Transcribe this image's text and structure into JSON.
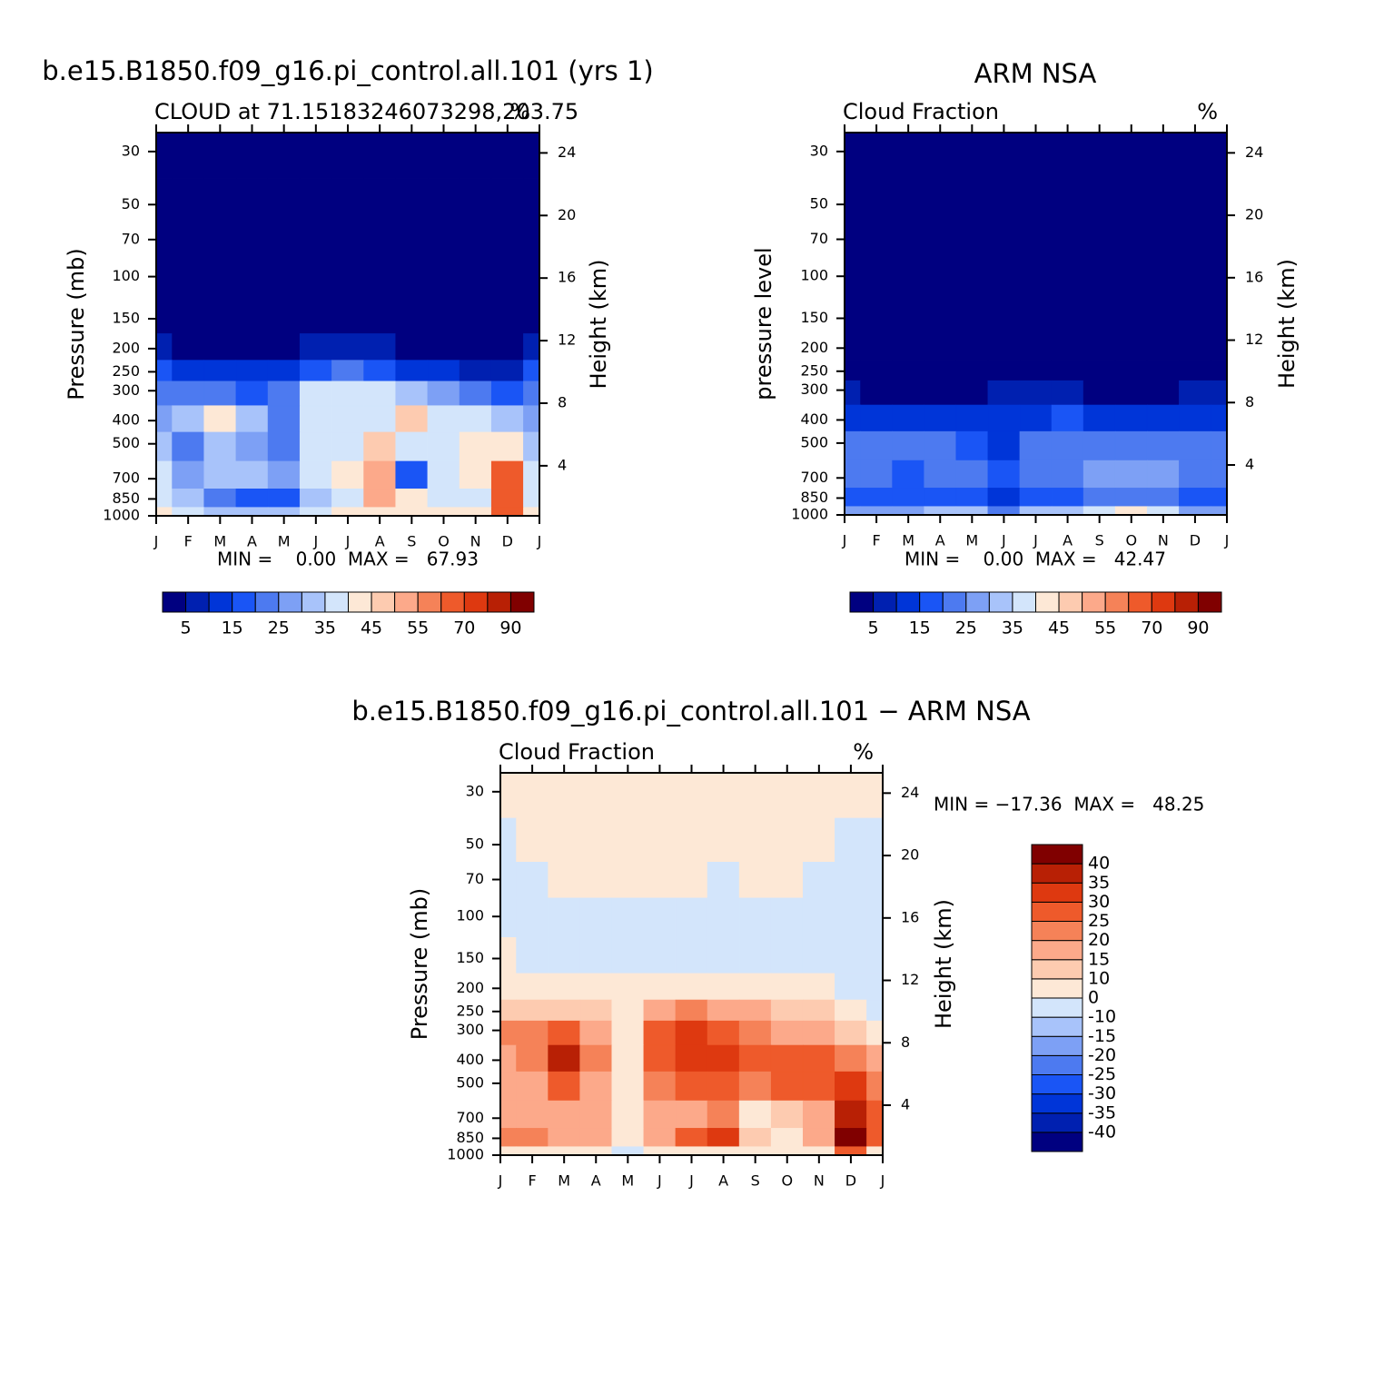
{
  "chart_data": [
    {
      "type": "contour",
      "title": "b.e15.B1850.f09_g16.pi_control.all.101  (yrs 1)",
      "subtitle_left": "CLOUD at 71.15183246073298,203.75",
      "subtitle_right": "%",
      "y_label": "Pressure (mb)",
      "y2_label": "Height (km)",
      "categories": [
        "J",
        "F",
        "M",
        "A",
        "M",
        "J",
        "J",
        "A",
        "S",
        "O",
        "N",
        "D",
        "J"
      ],
      "yticks": [
        30,
        50,
        70,
        100,
        150,
        200,
        250,
        300,
        400,
        500,
        700,
        850,
        1000
      ],
      "ylim": [
        1000,
        25
      ],
      "log_y": true,
      "y2ticks": [
        4,
        8,
        12,
        16,
        20,
        24
      ],
      "y2lim": [
        0.8,
        25.3
      ],
      "stats": "MIN =    0.00  MAX =   67.93",
      "levels": [
        5,
        10,
        15,
        20,
        25,
        30,
        35,
        40,
        45,
        50,
        55,
        60,
        70,
        80,
        90
      ],
      "colors": [
        "#000080",
        "#0020b0",
        "#0035d8",
        "#1a55f5",
        "#4d7af0",
        "#7da0f5",
        "#a8c3fa",
        "#d3e5fb",
        "#fde8d6",
        "#fdcbb0",
        "#fca98a",
        "#f58258",
        "#ee5a2b",
        "#de3910",
        "#b82005",
        "#800000"
      ],
      "z": [
        [
          0,
          0,
          0,
          0,
          0,
          0,
          0,
          0,
          0,
          0,
          0,
          0,
          0
        ],
        [
          0,
          0,
          0,
          0,
          0,
          0,
          0,
          0,
          0,
          0,
          0,
          0,
          0
        ],
        [
          0,
          0,
          0,
          0,
          0,
          0,
          0,
          0,
          0,
          0,
          0,
          0,
          0
        ],
        [
          0.5,
          0.5,
          0.5,
          0.5,
          0.5,
          0.5,
          0.5,
          0.5,
          0.5,
          0.5,
          0.5,
          0.5,
          0.5
        ],
        [
          1,
          1,
          1,
          1,
          1,
          1,
          1,
          1,
          1,
          1,
          1,
          1,
          1
        ],
        [
          8,
          4,
          3,
          2,
          3,
          5,
          8,
          6,
          4,
          4,
          3,
          2,
          8
        ],
        [
          15,
          12,
          12,
          10,
          12,
          18,
          22,
          18,
          14,
          12,
          8,
          6,
          15
        ],
        [
          22,
          20,
          22,
          18,
          22,
          35,
          38,
          36,
          30,
          28,
          22,
          18,
          22
        ],
        [
          28,
          30,
          40,
          30,
          20,
          35,
          38,
          36,
          45,
          38,
          35,
          30,
          28
        ],
        [
          30,
          22,
          30,
          28,
          20,
          38,
          38,
          45,
          38,
          36,
          40,
          42,
          30
        ],
        [
          35,
          28,
          30,
          30,
          25,
          38,
          40,
          50,
          15,
          35,
          40,
          62,
          35
        ],
        [
          38,
          30,
          20,
          15,
          18,
          30,
          38,
          52,
          40,
          38,
          38,
          62,
          38
        ],
        [
          40,
          38,
          30,
          30,
          30,
          35,
          40,
          40,
          40,
          40,
          40,
          67.93,
          40
        ]
      ]
    },
    {
      "type": "contour",
      "title": "ARM NSA",
      "subtitle_left": "Cloud Fraction",
      "subtitle_right": "%",
      "y_label": "pressure level",
      "y2_label": "Height (km)",
      "categories": [
        "J",
        "F",
        "M",
        "A",
        "M",
        "J",
        "J",
        "A",
        "S",
        "O",
        "N",
        "D",
        "J"
      ],
      "yticks": [
        30,
        50,
        70,
        100,
        150,
        200,
        250,
        300,
        400,
        500,
        700,
        850,
        1000
      ],
      "ylim": [
        1000,
        25
      ],
      "log_y": true,
      "y2ticks": [
        4,
        8,
        12,
        16,
        20,
        24
      ],
      "y2lim": [
        0.8,
        25.3
      ],
      "stats": "MIN =    0.00  MAX =   42.47",
      "levels": [
        5,
        10,
        15,
        20,
        25,
        30,
        35,
        40,
        45,
        50,
        55,
        60,
        70,
        80,
        90
      ],
      "colors": [
        "#000080",
        "#0020b0",
        "#0035d8",
        "#1a55f5",
        "#4d7af0",
        "#7da0f5",
        "#a8c3fa",
        "#d3e5fb",
        "#fde8d6",
        "#fdcbb0",
        "#fca98a",
        "#f58258",
        "#ee5a2b",
        "#de3910",
        "#b82005",
        "#800000"
      ],
      "z": [
        [
          0,
          0,
          0,
          0,
          0,
          0,
          0,
          0,
          0,
          0,
          0,
          0,
          0
        ],
        [
          0,
          0,
          0,
          0,
          0,
          0,
          0,
          0,
          0,
          0,
          0,
          0,
          0
        ],
        [
          0,
          0,
          0,
          0,
          0,
          0,
          0,
          0,
          0,
          0,
          0,
          0,
          0
        ],
        [
          0,
          0,
          0,
          0,
          0,
          0,
          0,
          0,
          0,
          0,
          0,
          0,
          0
        ],
        [
          0,
          0,
          0,
          0,
          0,
          0,
          0,
          0,
          0,
          0,
          0,
          0,
          0
        ],
        [
          0,
          0,
          0,
          0,
          0,
          0,
          0,
          0,
          0,
          0,
          0,
          0,
          0
        ],
        [
          0,
          0,
          0,
          0,
          0,
          0,
          0,
          0,
          0,
          0,
          0,
          0,
          0
        ],
        [
          6,
          4,
          2,
          3,
          4,
          5,
          5,
          6,
          4,
          4,
          4,
          6,
          6
        ],
        [
          12,
          10,
          10,
          10,
          10,
          12,
          14,
          16,
          12,
          12,
          12,
          14,
          12
        ],
        [
          20,
          20,
          22,
          20,
          18,
          14,
          20,
          22,
          20,
          20,
          22,
          22,
          20
        ],
        [
          22,
          20,
          16,
          20,
          22,
          16,
          20,
          24,
          26,
          26,
          25,
          22,
          22
        ],
        [
          18,
          18,
          18,
          18,
          18,
          12,
          18,
          18,
          20,
          24,
          24,
          18,
          18
        ],
        [
          25,
          25,
          26,
          30,
          30,
          22,
          30,
          32,
          38,
          42.47,
          36,
          28,
          25
        ]
      ]
    },
    {
      "type": "contour",
      "title": "b.e15.B1850.f09_g16.pi_control.all.101 − ARM NSA",
      "subtitle_left": "Cloud Fraction",
      "subtitle_right": "%",
      "y_label": "Pressure (mb)",
      "y2_label": "Height (km)",
      "categories": [
        "J",
        "F",
        "M",
        "A",
        "M",
        "J",
        "J",
        "A",
        "S",
        "O",
        "N",
        "D",
        "J"
      ],
      "yticks": [
        30,
        50,
        70,
        100,
        150,
        200,
        250,
        300,
        400,
        500,
        700,
        850,
        1000
      ],
      "ylim": [
        1000,
        25
      ],
      "log_y": true,
      "y2ticks": [
        4,
        8,
        12,
        16,
        20,
        24
      ],
      "y2lim": [
        0.8,
        25.3
      ],
      "stats": "MIN = −17.36  MAX =   48.25",
      "levels": [
        -40,
        -35,
        -30,
        -25,
        -20,
        -15,
        -10,
        0,
        10,
        15,
        20,
        25,
        30,
        35,
        40
      ],
      "colors": [
        "#000080",
        "#0020b0",
        "#0035d8",
        "#1a55f5",
        "#4d7af0",
        "#7da0f5",
        "#a8c3fa",
        "#d3e5fb",
        "#fde8d6",
        "#fdcbb0",
        "#fca98a",
        "#f58258",
        "#ee5a2b",
        "#de3910",
        "#b82005",
        "#800000"
      ],
      "z": [
        [
          2,
          2,
          2,
          2,
          2,
          2,
          2,
          2,
          2,
          2,
          2,
          2,
          2
        ],
        [
          -2,
          2,
          2,
          2,
          2,
          2,
          2,
          2,
          2,
          2,
          2,
          -2,
          -2
        ],
        [
          -2,
          -2,
          2,
          2,
          2,
          2,
          2,
          -2,
          2,
          2,
          -2,
          -2,
          -2
        ],
        [
          -2,
          -2,
          -2,
          -2,
          -2,
          -2,
          -2,
          -2,
          -2,
          -2,
          -2,
          -2,
          -2
        ],
        [
          3,
          -2,
          -2,
          -2,
          -2,
          -2,
          -2,
          -2,
          -2,
          -2,
          -2,
          -2,
          -2
        ],
        [
          5,
          5,
          5,
          5,
          5,
          5,
          5,
          5,
          3,
          3,
          5,
          -2,
          -3
        ],
        [
          12,
          12,
          12,
          10,
          8,
          15,
          20,
          18,
          15,
          12,
          10,
          5,
          -2
        ],
        [
          20,
          22,
          25,
          18,
          8,
          25,
          32,
          28,
          22,
          18,
          15,
          10,
          5
        ],
        [
          18,
          22,
          36,
          20,
          8,
          28,
          30,
          30,
          28,
          25,
          28,
          20,
          15
        ],
        [
          15,
          15,
          25,
          18,
          8,
          22,
          25,
          25,
          22,
          25,
          25,
          30,
          22
        ],
        [
          18,
          15,
          18,
          15,
          5,
          15,
          15,
          20,
          5,
          12,
          18,
          38,
          25
        ],
        [
          22,
          20,
          18,
          15,
          8,
          15,
          28,
          30,
          10,
          8,
          15,
          48.25,
          25
        ],
        [
          5,
          5,
          5,
          0,
          -3,
          5,
          3,
          3,
          3,
          3,
          5,
          25,
          5
        ]
      ]
    }
  ]
}
